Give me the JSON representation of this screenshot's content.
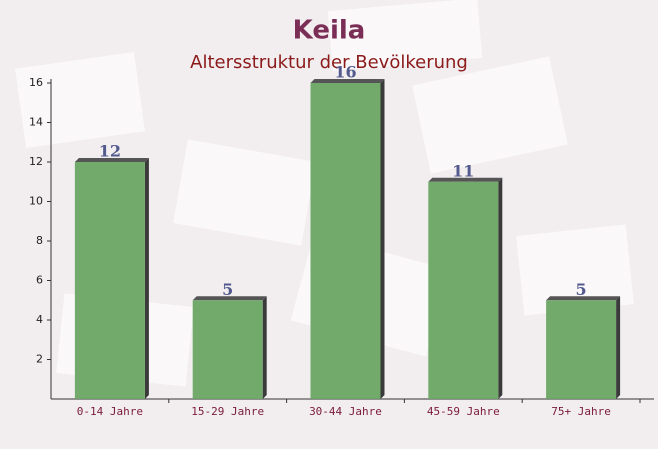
{
  "chart_data": {
    "type": "bar",
    "title": "Keila",
    "subtitle": "Altersstruktur der Bevölkerung",
    "categories": [
      "0-14 Jahre",
      "15-29 Jahre",
      "30-44 Jahre",
      "45-59 Jahre",
      "75+ Jahre"
    ],
    "values": [
      12,
      5,
      16,
      11,
      5
    ],
    "color": "#6aa564",
    "ylim": [
      0,
      16
    ],
    "yticks": [
      2,
      4,
      6,
      8,
      10,
      12,
      14,
      16
    ]
  }
}
